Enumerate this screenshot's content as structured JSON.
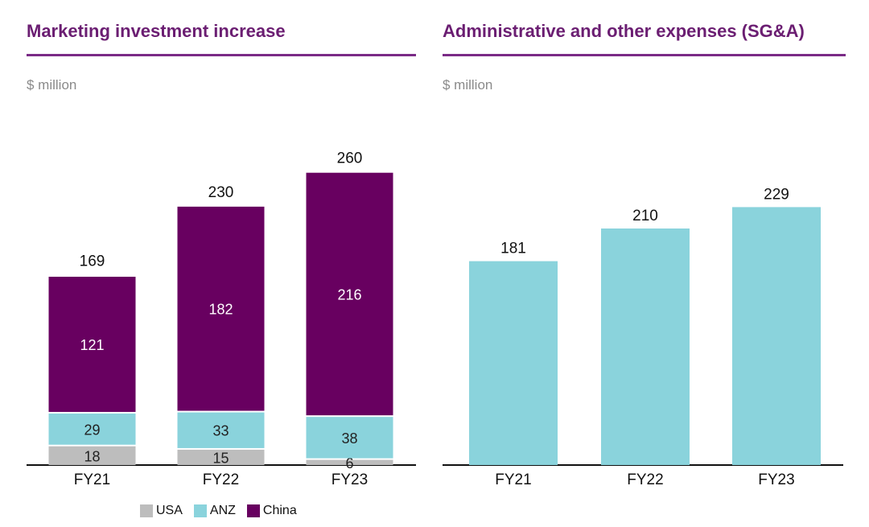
{
  "colors": {
    "title": "#6b1e72",
    "rule": "#7a2a86",
    "unit": "#8a8a8a",
    "usa": "#bdbdbd",
    "anz": "#8ad3dc",
    "china": "#680060",
    "sga": "#8ad3dc"
  },
  "chart_data": [
    {
      "type": "bar",
      "stacked": true,
      "title": "Marketing investment increase",
      "unit_label": "$ million",
      "categories": [
        "FY21",
        "FY22",
        "FY23"
      ],
      "series": [
        {
          "name": "USA",
          "values": [
            18,
            15,
            6
          ]
        },
        {
          "name": "ANZ",
          "values": [
            29,
            33,
            38
          ]
        },
        {
          "name": "China",
          "values": [
            121,
            182,
            216
          ]
        }
      ],
      "totals": [
        169,
        230,
        260
      ],
      "legend": [
        "USA",
        "ANZ",
        "China"
      ],
      "legend_position": "bottom",
      "grid": false,
      "xlabel": "",
      "ylabel": ""
    },
    {
      "type": "bar",
      "title": "Administrative and other expenses (SG&A)",
      "unit_label": "$ million",
      "categories": [
        "FY21",
        "FY22",
        "FY23"
      ],
      "values": [
        181,
        210,
        229
      ],
      "grid": false,
      "xlabel": "",
      "ylabel": ""
    }
  ]
}
